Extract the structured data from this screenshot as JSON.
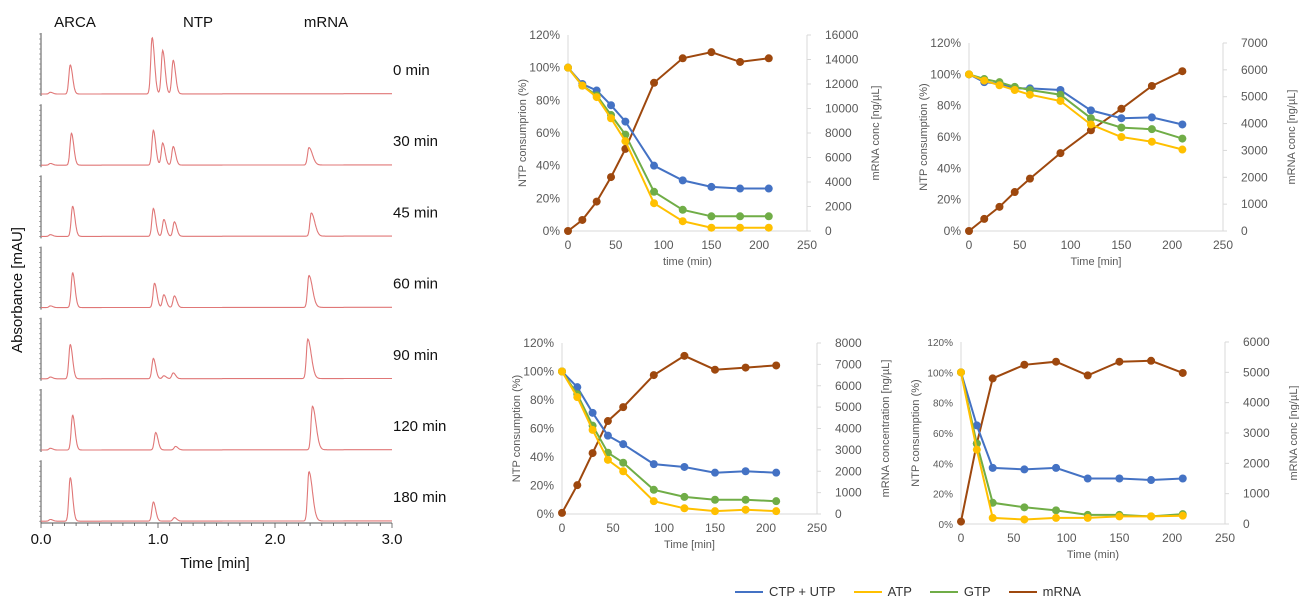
{
  "series_colors": {
    "CTP + UTP": "#4472C4",
    "ATP": "#FFC000",
    "GTP": "#70AD47",
    "mRNA": "#9E480E"
  },
  "legend": [
    "CTP + UTP",
    "ATP",
    "GTP",
    "mRNA"
  ],
  "chart_data": [
    {
      "type": "line",
      "kind": "chromatogram",
      "ylabel": "Absorbance [mAU]",
      "xlabel": "Time [min]",
      "xlim": [
        0,
        3
      ],
      "xticks": [
        "0.0",
        "1.0",
        "2.0",
        "3.0"
      ],
      "peak_labels": [
        "ARCA",
        "NTP",
        "mRNA"
      ],
      "trace_color": "#E07777",
      "traces": [
        {
          "label": "0 min",
          "peaks": [
            [
              0.08,
              0.03
            ],
            [
              0.25,
              0.5
            ],
            [
              0.95,
              0.97
            ],
            [
              1.04,
              0.75
            ],
            [
              1.13,
              0.58
            ]
          ]
        },
        {
          "label": "30 min",
          "peaks": [
            [
              0.08,
              0.03
            ],
            [
              0.26,
              0.55
            ],
            [
              0.96,
              0.6
            ],
            [
              1.04,
              0.38
            ],
            [
              1.13,
              0.32
            ],
            [
              2.29,
              0.3
            ]
          ]
        },
        {
          "label": "45 min",
          "peaks": [
            [
              0.08,
              0.03
            ],
            [
              0.27,
              0.52
            ],
            [
              0.96,
              0.48
            ],
            [
              1.05,
              0.29
            ],
            [
              1.14,
              0.25
            ],
            [
              2.31,
              0.4
            ]
          ]
        },
        {
          "label": "60 min",
          "peaks": [
            [
              0.08,
              0.03
            ],
            [
              0.27,
              0.6
            ],
            [
              0.97,
              0.42
            ],
            [
              1.05,
              0.22
            ],
            [
              1.14,
              0.2
            ],
            [
              2.29,
              0.55
            ]
          ]
        },
        {
          "label": "90 min",
          "peaks": [
            [
              0.08,
              0.03
            ],
            [
              0.25,
              0.59
            ],
            [
              0.96,
              0.35
            ],
            [
              1.05,
              0.05
            ],
            [
              1.13,
              0.1
            ],
            [
              2.28,
              0.68
            ]
          ]
        },
        {
          "label": "120 min",
          "peaks": [
            [
              0.08,
              0.03
            ],
            [
              0.27,
              0.6
            ],
            [
              0.98,
              0.3
            ],
            [
              1.15,
              0.06
            ],
            [
              2.32,
              0.75
            ]
          ]
        },
        {
          "label": "180 min",
          "peaks": [
            [
              0.08,
              0.03
            ],
            [
              0.25,
              0.75
            ],
            [
              0.96,
              0.33
            ],
            [
              1.14,
              0.06
            ],
            [
              2.29,
              0.85
            ]
          ]
        }
      ]
    },
    {
      "type": "line",
      "xlabel": "time (min)",
      "ylabel": "NTP consumprion (%)",
      "y2label": "mRNA conc [ng/µL]",
      "xlim": [
        0,
        250
      ],
      "xstep": 50,
      "ylim": [
        0,
        120
      ],
      "ystep": 20,
      "y2lim": [
        0,
        16000
      ],
      "y2step": 2000,
      "x": [
        0,
        15,
        30,
        45,
        60,
        90,
        120,
        150,
        180,
        210
      ],
      "series": [
        {
          "name": "CTP + UTP",
          "axis": "left",
          "values": [
            100,
            90,
            86,
            77,
            67,
            40,
            31,
            27,
            26,
            26
          ]
        },
        {
          "name": "ATP",
          "axis": "left",
          "values": [
            100,
            89,
            82,
            69,
            55,
            17,
            6,
            2,
            2,
            2
          ]
        },
        {
          "name": "GTP",
          "axis": "left",
          "values": [
            100,
            89,
            83,
            71,
            59,
            24,
            13,
            9,
            9,
            9
          ]
        },
        {
          "name": "mRNA",
          "axis": "right",
          "values": [
            0,
            900,
            2400,
            4400,
            6700,
            12100,
            14100,
            14600,
            13800,
            14100
          ]
        }
      ]
    },
    {
      "type": "line",
      "xlabel": "Time [min]",
      "ylabel": "NTP consumption (%)",
      "y2label": "mRNA conc [ng/µL]",
      "xlim": [
        0,
        250
      ],
      "xstep": 50,
      "ylim": [
        0,
        120
      ],
      "ystep": 20,
      "y2lim": [
        0,
        7000
      ],
      "y2step": 1000,
      "x": [
        0,
        15,
        30,
        45,
        60,
        90,
        120,
        150,
        180,
        210
      ],
      "series": [
        {
          "name": "CTP + UTP",
          "axis": "left",
          "values": [
            100,
            95,
            94,
            91,
            91,
            90,
            77,
            72,
            72.5,
            68
          ]
        },
        {
          "name": "ATP",
          "axis": "left",
          "values": [
            100,
            96,
            93,
            90,
            87,
            83,
            68,
            60,
            57,
            52
          ]
        },
        {
          "name": "GTP",
          "axis": "left",
          "values": [
            100,
            97,
            95,
            92,
            90,
            87,
            72,
            66,
            65,
            59
          ]
        },
        {
          "name": "mRNA",
          "axis": "right",
          "values": [
            0,
            450,
            900,
            1450,
            1950,
            2900,
            3750,
            4550,
            5400,
            5950
          ]
        }
      ]
    },
    {
      "type": "line",
      "xlabel": "Time [min]",
      "ylabel": "NTP consumption (%)",
      "y2label": "mRNA concentration [ng/µL]",
      "xlim": [
        0,
        250
      ],
      "xstep": 50,
      "ylim": [
        0,
        120
      ],
      "ystep": 20,
      "y2lim": [
        0,
        8000
      ],
      "y2step": 1000,
      "x": [
        0,
        15,
        30,
        45,
        60,
        90,
        120,
        150,
        180,
        210
      ],
      "series": [
        {
          "name": "CTP + UTP",
          "axis": "left",
          "values": [
            100,
            89,
            71,
            55,
            49,
            35,
            33,
            29,
            30,
            29
          ]
        },
        {
          "name": "ATP",
          "axis": "left",
          "values": [
            100,
            82,
            59,
            38,
            30,
            9,
            4,
            2,
            3,
            2
          ]
        },
        {
          "name": "GTP",
          "axis": "left",
          "values": [
            100,
            84,
            62,
            43,
            36,
            17,
            12,
            10,
            10,
            9
          ]
        },
        {
          "name": "mRNA",
          "axis": "right",
          "values": [
            50,
            1350,
            2850,
            4350,
            5000,
            6500,
            7400,
            6750,
            6850,
            6950
          ]
        }
      ]
    },
    {
      "type": "line",
      "xlabel": "Time (min)",
      "ylabel": "NTP consumption (%)",
      "y2label": "mRNA conc [ng/µL]",
      "xlim": [
        0,
        250
      ],
      "xstep": 50,
      "ylim": [
        0,
        120
      ],
      "ystep": 20,
      "y2lim": [
        0,
        6000
      ],
      "y2step": 1000,
      "x": [
        0,
        15,
        30,
        60,
        90,
        120,
        150,
        180,
        210
      ],
      "series": [
        {
          "name": "CTP + UTP",
          "axis": "left",
          "values": [
            100,
            65,
            37,
            36,
            37,
            30,
            30,
            29,
            30
          ]
        },
        {
          "name": "ATP",
          "axis": "left",
          "values": [
            100,
            49,
            4,
            3,
            4,
            4,
            5,
            5,
            5.5
          ]
        },
        {
          "name": "GTP",
          "axis": "left",
          "values": [
            100,
            53,
            14,
            11,
            9,
            6,
            6,
            5,
            6.5
          ]
        },
        {
          "name": "mRNA",
          "axis": "right",
          "values": [
            80,
            2650,
            4800,
            5250,
            5350,
            4900,
            5350,
            5380,
            4980
          ]
        }
      ]
    }
  ]
}
